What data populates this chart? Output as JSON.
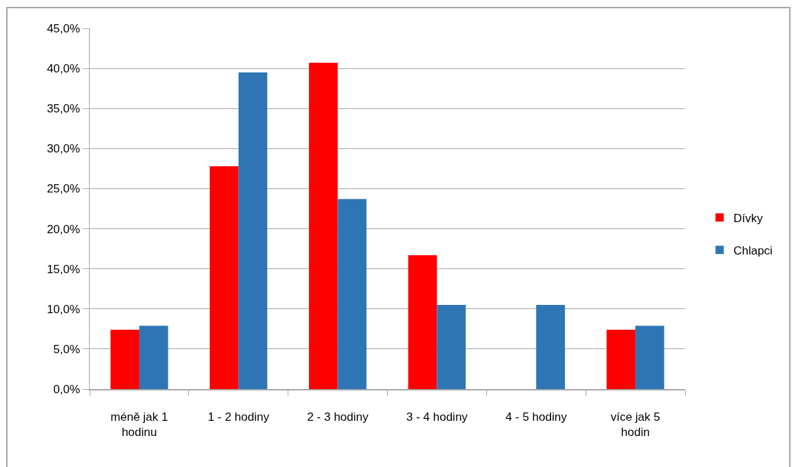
{
  "chart_data": {
    "type": "bar",
    "categories": [
      "méně jak 1 hodinu",
      "1 - 2 hodiny",
      "2 - 3 hodiny",
      "3 - 4 hodiny",
      "4 - 5 hodiny",
      "více jak 5 hodin"
    ],
    "series": [
      {
        "name": "Dívky",
        "color": "#ff0000",
        "values": [
          7.4,
          27.8,
          40.7,
          16.7,
          0,
          7.4
        ]
      },
      {
        "name": "Chlapci",
        "color": "#2e75b6",
        "values": [
          7.9,
          39.5,
          23.7,
          10.5,
          10.5,
          7.9
        ]
      }
    ],
    "ylim": [
      0,
      45
    ],
    "yticks": [
      {
        "value": 0,
        "label": "0,0%"
      },
      {
        "value": 5,
        "label": "5,0%"
      },
      {
        "value": 10,
        "label": "10,0%"
      },
      {
        "value": 15,
        "label": "15,0%"
      },
      {
        "value": 20,
        "label": "20,0%"
      },
      {
        "value": 25,
        "label": "25,0%"
      },
      {
        "value": 30,
        "label": "30,0%"
      },
      {
        "value": 35,
        "label": "35,0%"
      },
      {
        "value": 40,
        "label": "40,0%"
      },
      {
        "value": 45,
        "label": "45,0%"
      }
    ],
    "grid": "y",
    "legend": "right"
  }
}
